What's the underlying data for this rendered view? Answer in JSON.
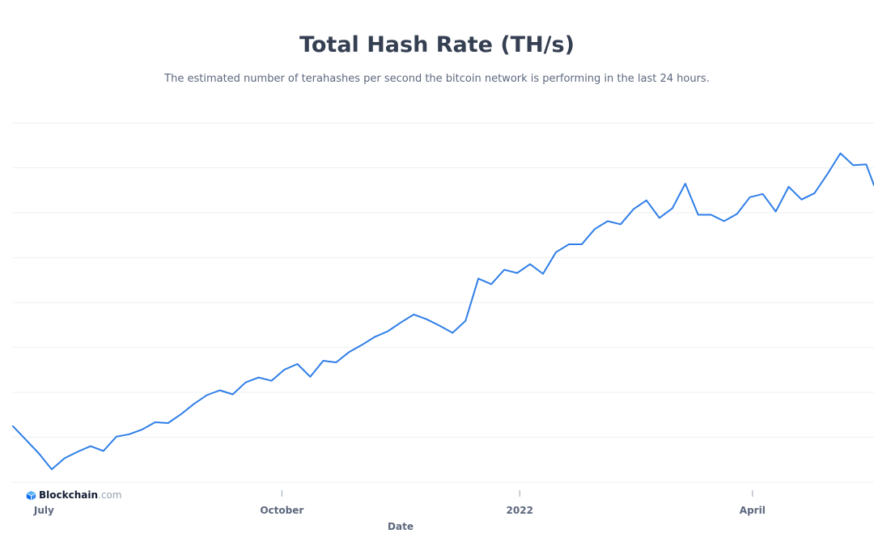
{
  "chart_data": {
    "type": "line",
    "title": "Total Hash Rate (TH/s)",
    "subtitle": "The estimated number of terahashes per second the bitcoin network is performing in the last 24 hours.",
    "xlabel": "Date",
    "ylabel": "",
    "x_ticks": [
      "July",
      "October",
      "2022",
      "April"
    ],
    "grid": true,
    "legend": "none",
    "x": [
      "2021-06-19",
      "2021-06-24",
      "2021-06-29",
      "2021-07-04",
      "2021-07-09",
      "2021-07-14",
      "2021-07-19",
      "2021-07-24",
      "2021-07-29",
      "2021-08-03",
      "2021-08-08",
      "2021-08-13",
      "2021-08-18",
      "2021-08-23",
      "2021-08-28",
      "2021-09-02",
      "2021-09-07",
      "2021-09-12",
      "2021-09-17",
      "2021-09-22",
      "2021-09-27",
      "2021-10-02",
      "2021-10-07",
      "2021-10-12",
      "2021-10-17",
      "2021-10-22",
      "2021-10-27",
      "2021-11-01",
      "2021-11-06",
      "2021-11-11",
      "2021-11-16",
      "2021-11-21",
      "2021-11-26",
      "2021-12-01",
      "2021-12-06",
      "2021-12-11",
      "2021-12-16",
      "2021-12-21",
      "2021-12-26",
      "2021-12-31",
      "2022-01-05",
      "2022-01-10",
      "2022-01-15",
      "2022-01-20",
      "2022-01-25",
      "2022-01-30",
      "2022-02-04",
      "2022-02-09",
      "2022-02-14",
      "2022-02-19",
      "2022-02-24",
      "2022-03-01",
      "2022-03-06",
      "2022-03-11",
      "2022-03-16",
      "2022-03-21",
      "2022-03-26",
      "2022-03-31",
      "2022-04-05",
      "2022-04-10",
      "2022-04-15",
      "2022-04-20",
      "2022-04-25",
      "2022-04-30",
      "2022-05-05",
      "2022-05-10",
      "2022-05-15",
      "2022-05-18"
    ],
    "values": [
      120,
      103,
      86,
      66,
      80,
      88,
      95,
      89,
      107,
      110,
      116,
      125,
      124,
      135,
      148,
      159,
      165,
      160,
      175,
      181,
      177,
      191,
      198,
      182,
      202,
      200,
      213,
      222,
      232,
      239,
      250,
      260,
      254,
      246,
      237,
      252,
      305,
      298,
      316,
      312,
      323,
      311,
      338,
      348,
      348,
      367,
      377,
      373,
      392,
      403,
      381,
      393,
      424,
      385,
      385,
      377,
      386,
      407,
      411,
      389,
      420,
      404,
      412,
      436,
      462,
      447,
      448,
      422
    ]
  }
}
